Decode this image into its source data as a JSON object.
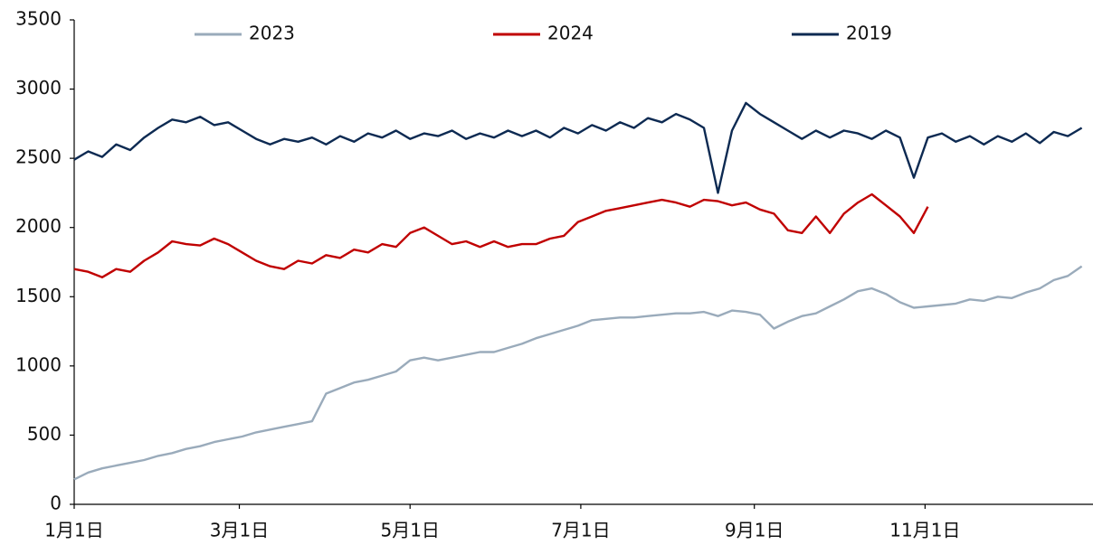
{
  "chart_data": {
    "type": "line",
    "x": [
      0,
      5,
      10,
      15,
      20,
      25,
      30,
      35,
      40,
      45,
      50,
      55,
      60,
      65,
      70,
      75,
      80,
      85,
      90,
      95,
      100,
      105,
      110,
      115,
      120,
      125,
      130,
      135,
      140,
      145,
      150,
      155,
      160,
      165,
      170,
      175,
      180,
      185,
      190,
      195,
      200,
      205,
      210,
      215,
      220,
      225,
      230,
      235,
      240,
      245,
      250,
      255,
      260,
      265,
      270,
      275,
      280,
      285,
      290,
      295,
      300,
      305,
      310,
      315,
      320,
      325,
      330,
      335,
      340,
      345,
      350,
      355,
      360
    ],
    "series": [
      {
        "name": "2023",
        "color": "#9aabbb",
        "values": [
          180,
          230,
          260,
          280,
          300,
          320,
          350,
          370,
          400,
          420,
          450,
          470,
          490,
          520,
          540,
          560,
          580,
          600,
          800,
          840,
          880,
          900,
          930,
          960,
          1040,
          1060,
          1040,
          1060,
          1080,
          1100,
          1100,
          1130,
          1160,
          1200,
          1230,
          1260,
          1290,
          1330,
          1340,
          1350,
          1350,
          1360,
          1370,
          1380,
          1380,
          1390,
          1360,
          1400,
          1390,
          1370,
          1270,
          1320,
          1360,
          1380,
          1430,
          1480,
          1540,
          1560,
          1520,
          1460,
          1420,
          1430,
          1440,
          1450,
          1480,
          1470,
          1500,
          1490,
          1530,
          1560,
          1620,
          1650,
          1720
        ]
      },
      {
        "name": "2024",
        "color": "#c00000",
        "values": [
          1700,
          1680,
          1640,
          1700,
          1680,
          1760,
          1820,
          1900,
          1880,
          1870,
          1920,
          1880,
          1820,
          1760,
          1720,
          1700,
          1760,
          1740,
          1800,
          1780,
          1840,
          1820,
          1880,
          1860,
          1960,
          2000,
          1940,
          1880,
          1900,
          1860,
          1900,
          1860,
          1880,
          1880,
          1920,
          1940,
          2040,
          2080,
          2120,
          2140,
          2160,
          2180,
          2200,
          2180,
          2150,
          2200,
          2190,
          2160,
          2180,
          2130,
          2100,
          1980,
          1960,
          2080,
          1960,
          2100,
          2180,
          2240,
          2160,
          2080,
          1960,
          2150,
          null,
          null,
          null,
          null,
          null,
          null,
          null,
          null,
          null,
          null,
          null
        ]
      },
      {
        "name": "2019",
        "color": "#0d2a52",
        "values": [
          2490,
          2550,
          2510,
          2600,
          2560,
          2650,
          2720,
          2780,
          2760,
          2800,
          2740,
          2760,
          2700,
          2640,
          2600,
          2640,
          2620,
          2650,
          2600,
          2660,
          2620,
          2680,
          2650,
          2700,
          2640,
          2680,
          2660,
          2700,
          2640,
          2680,
          2650,
          2700,
          2660,
          2700,
          2650,
          2720,
          2680,
          2740,
          2700,
          2760,
          2720,
          2790,
          2760,
          2820,
          2780,
          2720,
          2250,
          2700,
          2900,
          2820,
          2760,
          2700,
          2640,
          2700,
          2650,
          2700,
          2680,
          2640,
          2700,
          2650,
          2360,
          2650,
          2680,
          2620,
          2660,
          2600,
          2660,
          2620,
          2680,
          2610,
          2690,
          2660,
          2720
        ]
      }
    ],
    "xlim": [
      0,
      364
    ],
    "xticks": [
      {
        "value": 0,
        "label": "1月1日"
      },
      {
        "value": 59,
        "label": "3月1日"
      },
      {
        "value": 120,
        "label": "5月1日"
      },
      {
        "value": 181,
        "label": "7月1日"
      },
      {
        "value": 243,
        "label": "9月1日"
      },
      {
        "value": 304,
        "label": "11月1日"
      }
    ],
    "ylim": [
      0,
      3500
    ],
    "yticks": [
      0,
      500,
      1000,
      1500,
      2000,
      2500,
      3000,
      3500
    ],
    "grid": false,
    "legend": "top"
  }
}
